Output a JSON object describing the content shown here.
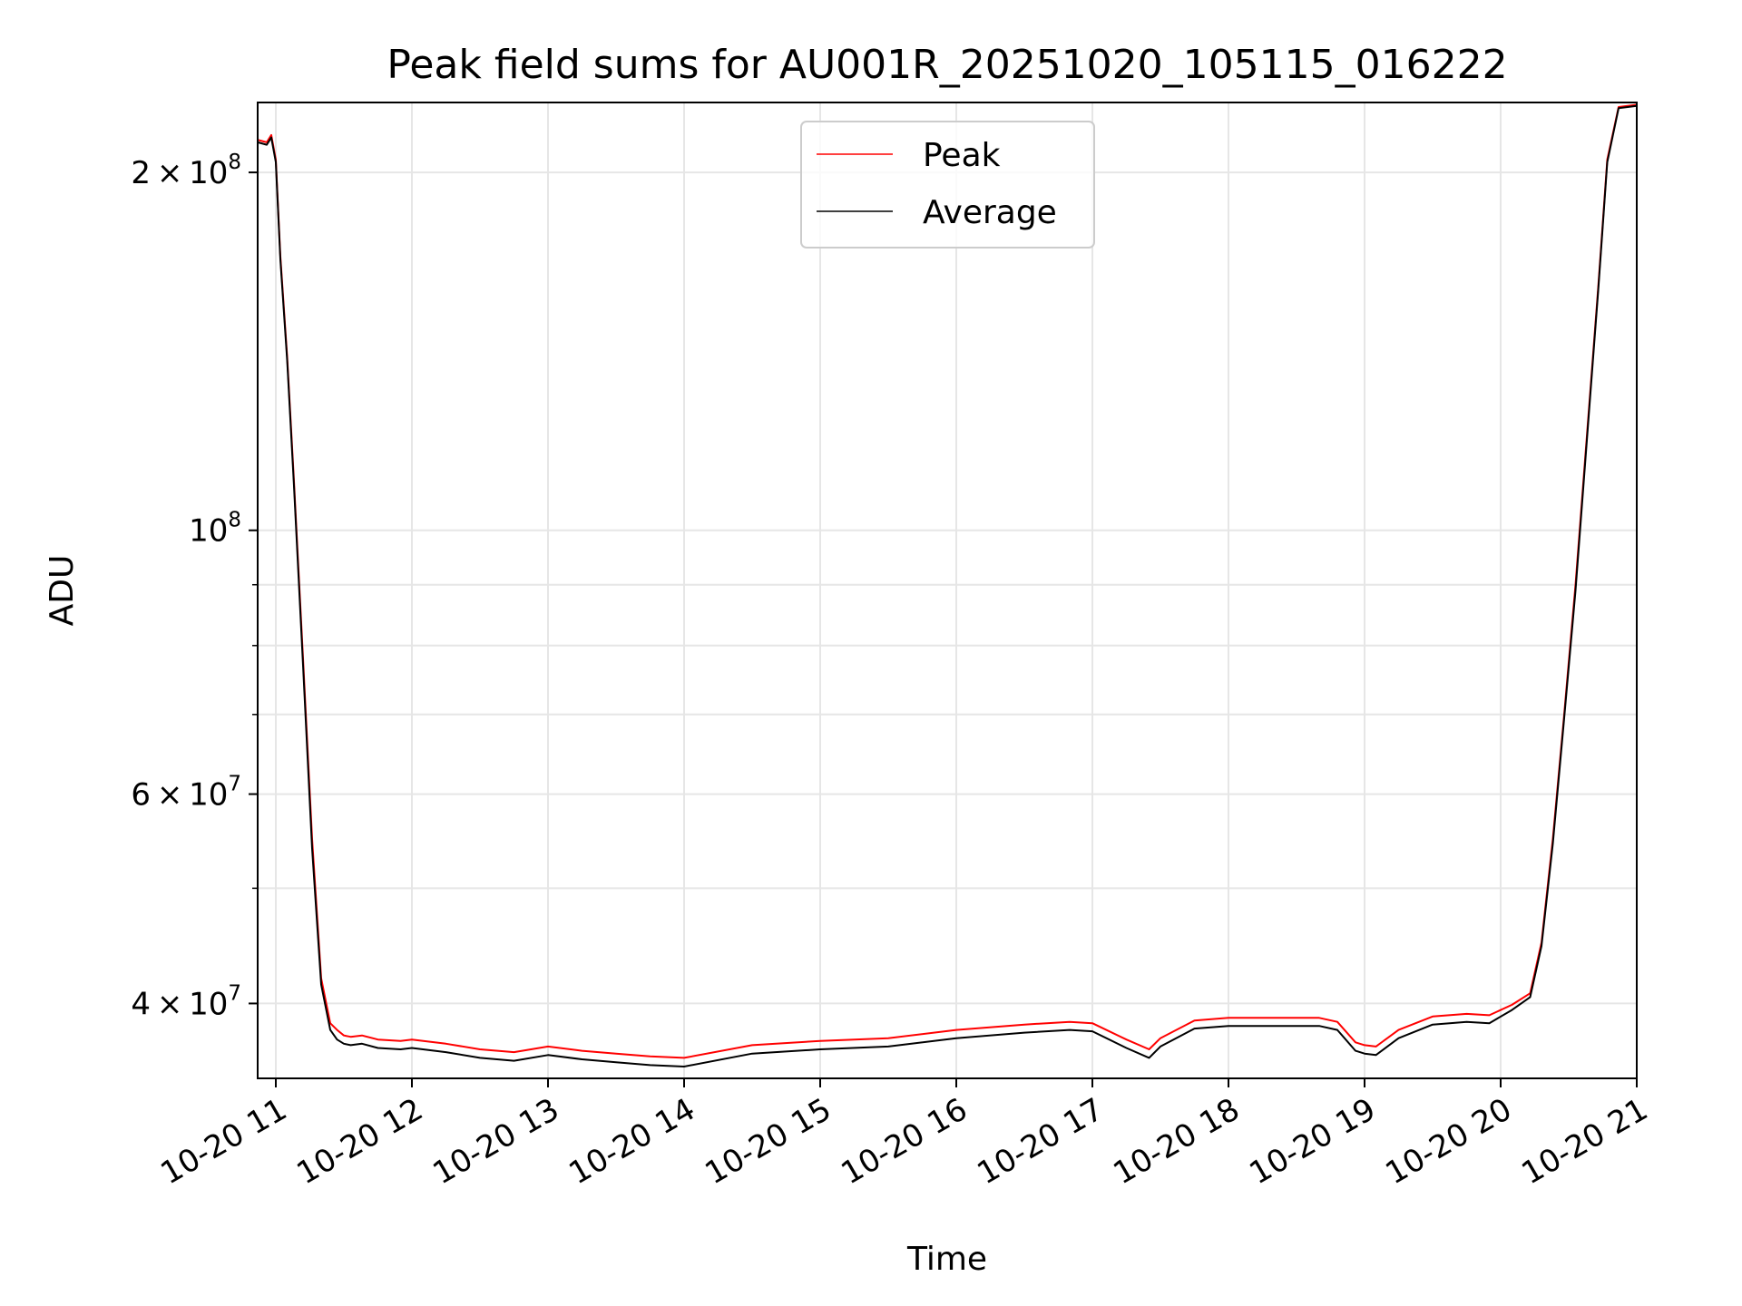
{
  "chart_data": {
    "type": "line",
    "title": "Peak field sums for AU001R_20251020_105115_016222",
    "xlabel": "Time",
    "ylabel": "ADU",
    "xlim": [
      "2025-10-20 10:52",
      "2025-10-20 21:00"
    ],
    "ylim": [
      34600000,
      229000000
    ],
    "yscale": "log",
    "grid": true,
    "legend_position": "top-center",
    "x_ticks": [
      {
        "t": "2025-10-20 11:00",
        "label": "10-20 11"
      },
      {
        "t": "2025-10-20 12:00",
        "label": "10-20 12"
      },
      {
        "t": "2025-10-20 13:00",
        "label": "10-20 13"
      },
      {
        "t": "2025-10-20 14:00",
        "label": "10-20 14"
      },
      {
        "t": "2025-10-20 15:00",
        "label": "10-20 15"
      },
      {
        "t": "2025-10-20 16:00",
        "label": "10-20 16"
      },
      {
        "t": "2025-10-20 17:00",
        "label": "10-20 17"
      },
      {
        "t": "2025-10-20 18:00",
        "label": "10-20 18"
      },
      {
        "t": "2025-10-20 19:00",
        "label": "10-20 19"
      },
      {
        "t": "2025-10-20 20:00",
        "label": "10-20 20"
      },
      {
        "t": "2025-10-20 21:00",
        "label": "10-20 21"
      }
    ],
    "y_major_ticks": [
      {
        "value": 40000000,
        "mantissa": "4",
        "exp": "7"
      },
      {
        "value": 60000000,
        "mantissa": "6",
        "exp": "7"
      },
      {
        "value": 100000000,
        "mantissa": "",
        "exp": "8"
      },
      {
        "value": 200000000,
        "mantissa": "2",
        "exp": "8"
      }
    ],
    "y_minor_ticks": [
      50000000,
      70000000,
      80000000,
      90000000
    ],
    "x": [
      "2025-10-20 10:52",
      "2025-10-20 10:56",
      "2025-10-20 10:58",
      "2025-10-20 11:00",
      "2025-10-20 11:02",
      "2025-10-20 11:05",
      "2025-10-20 11:08",
      "2025-10-20 11:12",
      "2025-10-20 11:16",
      "2025-10-20 11:20",
      "2025-10-20 11:24",
      "2025-10-20 11:27",
      "2025-10-20 11:30",
      "2025-10-20 11:33",
      "2025-10-20 11:38",
      "2025-10-20 11:45",
      "2025-10-20 11:55",
      "2025-10-20 12:00",
      "2025-10-20 12:15",
      "2025-10-20 12:30",
      "2025-10-20 12:45",
      "2025-10-20 13:00",
      "2025-10-20 13:15",
      "2025-10-20 13:30",
      "2025-10-20 13:45",
      "2025-10-20 14:00",
      "2025-10-20 14:30",
      "2025-10-20 15:00",
      "2025-10-20 15:30",
      "2025-10-20 16:00",
      "2025-10-20 16:30",
      "2025-10-20 16:50",
      "2025-10-20 17:00",
      "2025-10-20 17:15",
      "2025-10-20 17:25",
      "2025-10-20 17:30",
      "2025-10-20 17:45",
      "2025-10-20 18:00",
      "2025-10-20 18:40",
      "2025-10-20 18:48",
      "2025-10-20 18:56",
      "2025-10-20 19:00",
      "2025-10-20 19:05",
      "2025-10-20 19:15",
      "2025-10-20 19:30",
      "2025-10-20 19:45",
      "2025-10-20 19:55",
      "2025-10-20 20:05",
      "2025-10-20 20:13",
      "2025-10-20 20:18",
      "2025-10-20 20:23",
      "2025-10-20 20:28",
      "2025-10-20 20:33",
      "2025-10-20 20:38",
      "2025-10-20 20:43",
      "2025-10-20 20:47",
      "2025-10-20 20:52",
      "2025-10-20 21:00"
    ],
    "series": [
      {
        "name": "Peak",
        "color": "#ff0000",
        "values": [
          213000000,
          212000000,
          215000000,
          205000000,
          170000000,
          140000000,
          110000000,
          78000000,
          55000000,
          42000000,
          38500000,
          38000000,
          37600000,
          37500000,
          37600000,
          37300000,
          37200000,
          37300000,
          37000000,
          36600000,
          36400000,
          36800000,
          36500000,
          36300000,
          36100000,
          36000000,
          36900000,
          37200000,
          37400000,
          38000000,
          38400000,
          38600000,
          38500000,
          37300000,
          36600000,
          37400000,
          38700000,
          38900000,
          38900000,
          38600000,
          37100000,
          36900000,
          36800000,
          38000000,
          39000000,
          39200000,
          39100000,
          39900000,
          40800000,
          45000000,
          55000000,
          70000000,
          90000000,
          120000000,
          160000000,
          205000000,
          227000000,
          228000000
        ]
      },
      {
        "name": "Average",
        "color": "#000000",
        "values": [
          212000000,
          211000000,
          214000000,
          204000000,
          169000000,
          139000000,
          109000000,
          77000000,
          54000000,
          41500000,
          38000000,
          37300000,
          37000000,
          36900000,
          37000000,
          36700000,
          36600000,
          36700000,
          36400000,
          36000000,
          35800000,
          36200000,
          35900000,
          35700000,
          35500000,
          35400000,
          36300000,
          36600000,
          36800000,
          37400000,
          37800000,
          38000000,
          37900000,
          36700000,
          36000000,
          36800000,
          38100000,
          38300000,
          38300000,
          38000000,
          36500000,
          36300000,
          36200000,
          37400000,
          38400000,
          38600000,
          38500000,
          39500000,
          40500000,
          44700000,
          54500000,
          69500000,
          89000000,
          119000000,
          159000000,
          204000000,
          226500000,
          227500000
        ]
      }
    ]
  }
}
